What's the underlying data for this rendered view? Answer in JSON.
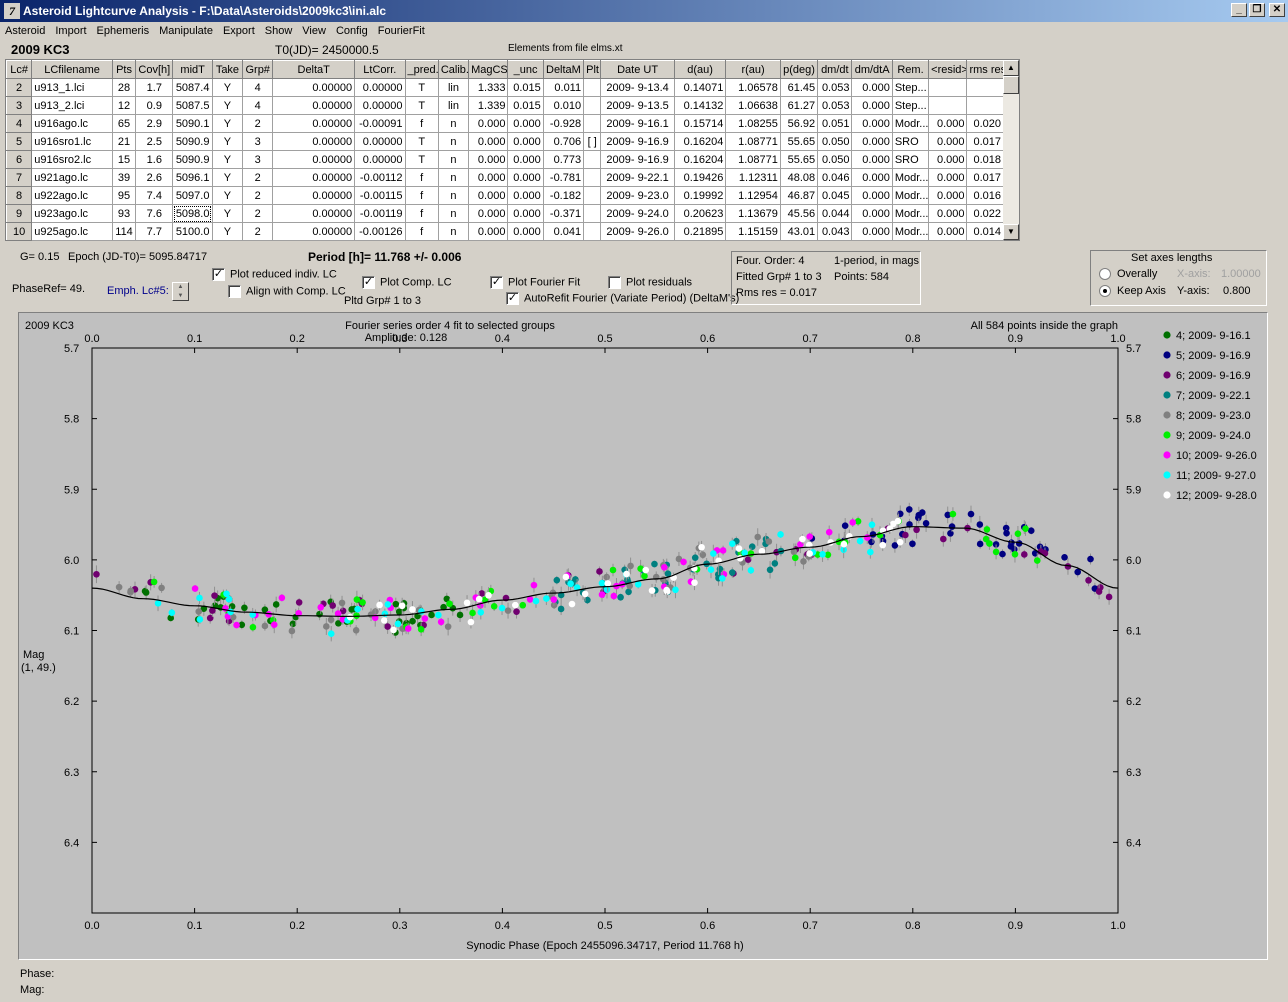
{
  "window": {
    "title": "Asteroid Lightcurve Analysis - F:\\Data\\Asteroids\\2009kc3\\ini.alc",
    "icon_label": "7",
    "btn_min": "_",
    "btn_restore": "❐",
    "btn_close": "✕"
  },
  "menu": [
    "Asteroid",
    "Import",
    "Ephemeris",
    "Manipulate",
    "Export",
    "Show",
    "View",
    "Config",
    "FourierFit"
  ],
  "header": {
    "object": "2009 KC3",
    "t0": "T0(JD)= 2450000.5",
    "elements": "Elements from file elms.xt"
  },
  "table": {
    "columns": [
      "Lc#",
      "LCfilename",
      "Pts",
      "Cov[h]",
      "midT",
      "Take",
      "Grp#",
      "DeltaT",
      "LtCorr.",
      "_pred.",
      "Calib.",
      "MagCS",
      "_unc",
      "DeltaM",
      "Plt",
      "Date UT",
      "d(au)",
      "r(au)",
      "p(deg)",
      "dm/dt",
      "dm/dtA",
      "Rem.",
      "<resid>",
      "rms res"
    ],
    "rows": [
      [
        "2",
        "u913_1.lci",
        "28",
        "1.7",
        "5087.4",
        "Y",
        "4",
        "0.00000",
        "0.00000",
        "T",
        "lin",
        "1.333",
        "0.015",
        "0.011",
        "",
        "2009- 9-13.4",
        "0.14071",
        "1.06578",
        "61.45",
        "0.053",
        "0.000",
        "Step...",
        "",
        ""
      ],
      [
        "3",
        "u913_2.lci",
        "12",
        "0.9",
        "5087.5",
        "Y",
        "4",
        "0.00000",
        "0.00000",
        "T",
        "lin",
        "1.339",
        "0.015",
        "0.010",
        "",
        "2009- 9-13.5",
        "0.14132",
        "1.06638",
        "61.27",
        "0.053",
        "0.000",
        "Step...",
        "",
        ""
      ],
      [
        "4",
        "u916ago.lc",
        "65",
        "2.9",
        "5090.1",
        "Y",
        "2",
        "0.00000",
        "-0.00091",
        "f",
        "n",
        "0.000",
        "0.000",
        "-0.928",
        "",
        "2009- 9-16.1",
        "0.15714",
        "1.08255",
        "56.92",
        "0.051",
        "0.000",
        "Modr...",
        "0.000",
        "0.020"
      ],
      [
        "5",
        "u916sro1.lc",
        "21",
        "2.5",
        "5090.9",
        "Y",
        "3",
        "0.00000",
        "0.00000",
        "T",
        "n",
        "0.000",
        "0.000",
        "0.706",
        "[ ]",
        "2009- 9-16.9",
        "0.16204",
        "1.08771",
        "55.65",
        "0.050",
        "0.000",
        "SRO",
        "0.000",
        "0.017"
      ],
      [
        "6",
        "u916sro2.lc",
        "15",
        "1.6",
        "5090.9",
        "Y",
        "3",
        "0.00000",
        "0.00000",
        "T",
        "n",
        "0.000",
        "0.000",
        "0.773",
        "",
        "2009- 9-16.9",
        "0.16204",
        "1.08771",
        "55.65",
        "0.050",
        "0.000",
        "SRO",
        "0.000",
        "0.018"
      ],
      [
        "7",
        "u921ago.lc",
        "39",
        "2.6",
        "5096.1",
        "Y",
        "2",
        "0.00000",
        "-0.00112",
        "f",
        "n",
        "0.000",
        "0.000",
        "-0.781",
        "",
        "2009- 9-22.1",
        "0.19426",
        "1.12311",
        "48.08",
        "0.046",
        "0.000",
        "Modr...",
        "0.000",
        "0.017"
      ],
      [
        "8",
        "u922ago.lc",
        "95",
        "7.4",
        "5097.0",
        "Y",
        "2",
        "0.00000",
        "-0.00115",
        "f",
        "n",
        "0.000",
        "0.000",
        "-0.182",
        "",
        "2009- 9-23.0",
        "0.19992",
        "1.12954",
        "46.87",
        "0.045",
        "0.000",
        "Modr...",
        "0.000",
        "0.016"
      ],
      [
        "9",
        "u923ago.lc",
        "93",
        "7.6",
        "5098.0",
        "Y",
        "2",
        "0.00000",
        "-0.00119",
        "f",
        "n",
        "0.000",
        "0.000",
        "-0.371",
        "",
        "2009- 9-24.0",
        "0.20623",
        "1.13679",
        "45.56",
        "0.044",
        "0.000",
        "Modr...",
        "0.000",
        "0.022"
      ],
      [
        "10",
        "u925ago.lc",
        "114",
        "7.7",
        "5100.0",
        "Y",
        "2",
        "0.00000",
        "-0.00126",
        "f",
        "n",
        "0.000",
        "0.000",
        "0.041",
        "",
        "2009- 9-26.0",
        "0.21895",
        "1.15159",
        "43.01",
        "0.043",
        "0.000",
        "Modr...",
        "0.000",
        "0.014"
      ]
    ]
  },
  "info": {
    "g": "G= 0.15",
    "epoch": "Epoch (JD-T0)= 5095.84717",
    "period": "Period [h]= 11.768 +/- 0.006",
    "phaseref": "PhaseRef= 49.",
    "emph": "Emph. Lc#5:",
    "pltd_grp": "Pltd Grp#  1   to   3"
  },
  "options": {
    "plot_reduced": {
      "label": "Plot reduced indiv. LC",
      "checked": true
    },
    "align_comp": {
      "label": "Align with Comp. LC",
      "checked": false
    },
    "plot_comp": {
      "label": "Plot Comp. LC",
      "checked": true
    },
    "plot_fourier": {
      "label": "Plot Fourier Fit",
      "checked": true
    },
    "plot_residuals": {
      "label": "Plot residuals",
      "checked": false
    },
    "autorefit": {
      "label": "AutoRefit Fourier (Variate Period) (DeltaM's)",
      "checked": true
    },
    "check_mark": "✓"
  },
  "fourier_panel": {
    "order": "Four. Order:  4",
    "one_period": "1-period, in mags",
    "fitted": "Fitted Grp# 1 to 3",
    "points": "Points: 584",
    "rms": "Rms res     = 0.017"
  },
  "axes_panel": {
    "title": "Set axes lengths",
    "overally": "Overally",
    "keep_axis": "Keep Axis",
    "x_axis_label": "X-axis:",
    "x_axis_value": "1.00000",
    "y_axis_label": "Y-axis:",
    "y_axis_value": "0.800",
    "selected": "keep_axis"
  },
  "chart_data": {
    "type": "scatter",
    "corner_label": "2009 KC3",
    "title": "Fourier series order 4 fit to selected groups",
    "subtitle": "Amplitude: 0.128",
    "note": "All 584 points inside the graph",
    "xlabel": "Synodic Phase (Epoch 2455096.34717, Period 11.768 h)",
    "ylabel": "Mag",
    "ylabel2": "(1, 49.)",
    "xlim": [
      0.0,
      1.0
    ],
    "ylim": [
      6.5,
      5.7
    ],
    "xticks": [
      "0.0",
      "0.1",
      "0.2",
      "0.3",
      "0.4",
      "0.5",
      "0.6",
      "0.7",
      "0.8",
      "0.9",
      "1.0"
    ],
    "yticks": [
      "5.7",
      "5.8",
      "5.9",
      "6.0",
      "6.1",
      "6.2",
      "6.3",
      "6.4"
    ],
    "fit_curve": {
      "x": [
        0.0,
        0.05,
        0.1,
        0.15,
        0.2,
        0.25,
        0.3,
        0.35,
        0.4,
        0.45,
        0.5,
        0.55,
        0.6,
        0.65,
        0.7,
        0.75,
        0.8,
        0.85,
        0.9,
        0.95,
        1.0
      ],
      "y": [
        6.04,
        6.055,
        6.065,
        6.074,
        6.079,
        6.08,
        6.078,
        6.07,
        6.057,
        6.047,
        6.038,
        6.027,
        6.006,
        5.992,
        5.982,
        5.967,
        5.953,
        5.955,
        5.975,
        6.008,
        6.04
      ]
    },
    "series": [
      {
        "name": "4; 2009- 9-16.1",
        "color": "#007000",
        "x_range": [
          0.05,
          0.36
        ],
        "y_center": 6.08
      },
      {
        "name": "5; 2009- 9-16.9",
        "color": "#000080",
        "x_range": [
          0.7,
          0.98
        ],
        "y_center": 5.96
      },
      {
        "name": "6; 2009- 9-16.9",
        "color": "#700070",
        "x_range": [
          0.0,
          1.0
        ],
        "y_center": 6.02
      },
      {
        "name": "7; 2009- 9-22.1",
        "color": "#008080",
        "x_range": [
          0.45,
          0.68
        ],
        "y_center": 6.02
      },
      {
        "name": "8; 2009- 9-23.0",
        "color": "#808080",
        "x_range": [
          0.02,
          0.7
        ],
        "y_center": 6.05
      },
      {
        "name": "9; 2009- 9-24.0",
        "color": "#00f000",
        "x_range": [
          0.05,
          0.98
        ],
        "y_center": 6.05
      },
      {
        "name": "10; 2009- 9-26.0",
        "color": "#ff00ff",
        "x_range": [
          0.1,
          0.8
        ],
        "y_center": 6.05
      },
      {
        "name": "11; 2009- 9-27.0",
        "color": "#00ffff",
        "x_range": [
          0.05,
          0.78
        ],
        "y_center": 6.04
      },
      {
        "name": "12; 2009- 9-28.0",
        "color": "#ffffff",
        "x_range": [
          0.25,
          0.82
        ],
        "y_center": 6.03
      }
    ],
    "grid": false,
    "legend_position": "right"
  },
  "status": {
    "phase": "Phase:",
    "mag": "Mag:"
  }
}
